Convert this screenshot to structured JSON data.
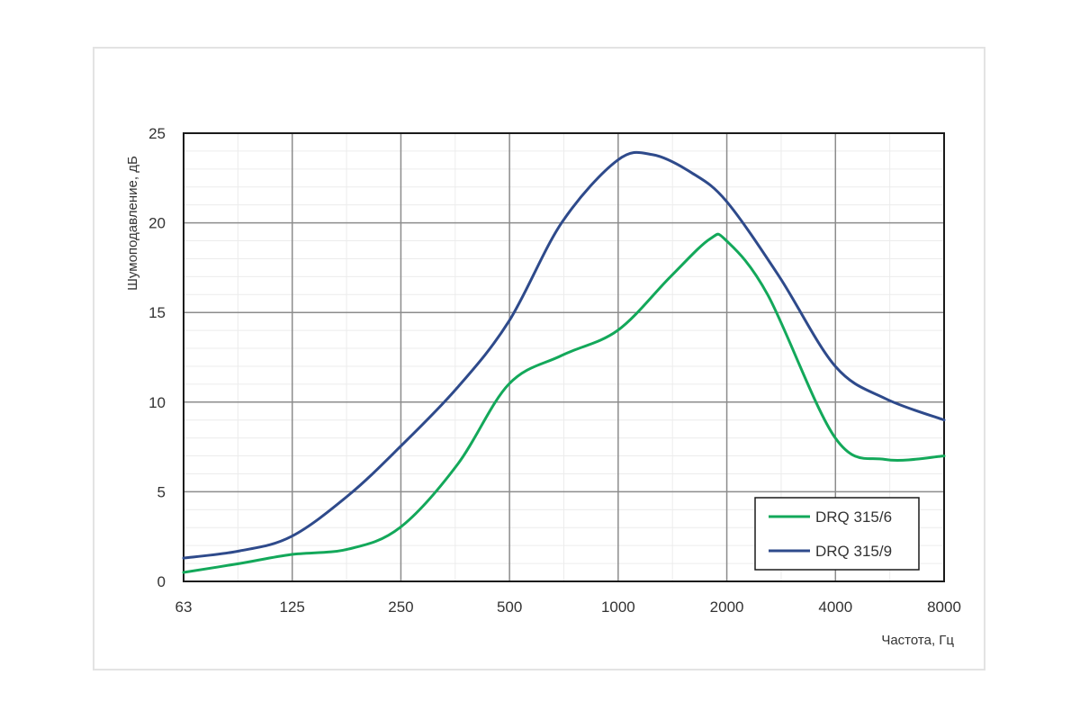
{
  "chart_data": {
    "type": "line",
    "xlabel": "Частота, Гц",
    "ylabel": "Шумоподавление, дБ",
    "x_scale": "log2",
    "x_ticks": [
      "63",
      "125",
      "250",
      "500",
      "1000",
      "2000",
      "4000",
      "8000"
    ],
    "x_range": [
      63,
      8000
    ],
    "y_ticks": [
      "0",
      "5",
      "10",
      "15",
      "20",
      "25"
    ],
    "ylim": [
      0,
      25
    ],
    "grid": true,
    "legend_position": "bottom-right",
    "series": [
      {
        "name": "DRQ 315/6",
        "color": "#13a85a",
        "points": [
          [
            63,
            0.5
          ],
          [
            90,
            1.0
          ],
          [
            125,
            1.5
          ],
          [
            180,
            1.8
          ],
          [
            250,
            3.0
          ],
          [
            360,
            6.5
          ],
          [
            500,
            11.0
          ],
          [
            700,
            12.6
          ],
          [
            1000,
            14.0
          ],
          [
            1400,
            17.0
          ],
          [
            1800,
            19.1
          ],
          [
            2000,
            19.0
          ],
          [
            2600,
            16.0
          ],
          [
            4000,
            8.0
          ],
          [
            5500,
            6.8
          ],
          [
            8000,
            7.0
          ]
        ]
      },
      {
        "name": "DRQ 315/9",
        "color": "#2e4a8b",
        "points": [
          [
            63,
            1.3
          ],
          [
            90,
            1.7
          ],
          [
            125,
            2.5
          ],
          [
            180,
            4.8
          ],
          [
            250,
            7.5
          ],
          [
            360,
            10.8
          ],
          [
            500,
            14.5
          ],
          [
            700,
            20.0
          ],
          [
            1000,
            23.5
          ],
          [
            1250,
            23.8
          ],
          [
            1600,
            22.8
          ],
          [
            2000,
            21.2
          ],
          [
            2800,
            17.0
          ],
          [
            4000,
            12.0
          ],
          [
            5500,
            10.2
          ],
          [
            8000,
            9.0
          ]
        ]
      }
    ]
  }
}
